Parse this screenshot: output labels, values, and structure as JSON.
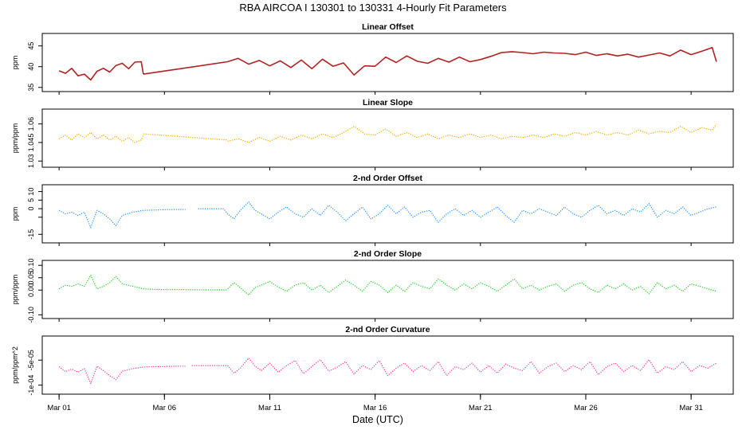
{
  "figure_title": "RBA   AIRCOA I   130301 to 130331   4-Hourly Fit Parameters",
  "chart_data": [
    {
      "type": "line",
      "title": "Linear Offset",
      "ylabel": "ppm",
      "ylim": [
        34,
        48
      ],
      "yticks": [
        35,
        40,
        45
      ],
      "ytick_labels": [
        "35",
        "40",
        "45"
      ],
      "color": "#b22222",
      "style": "solid",
      "segments": [
        {
          "x": [
            1.0,
            1.3,
            1.6,
            1.9,
            2.2,
            2.5,
            2.8,
            3.1,
            3.4,
            3.7,
            4.0,
            4.3,
            4.6,
            4.9,
            5.0
          ],
          "y": [
            39.0,
            38.4,
            39.6,
            37.8,
            38.2,
            36.8,
            38.9,
            39.6,
            38.7,
            40.3,
            40.8,
            39.5,
            41.1,
            41.2,
            38.2
          ]
        },
        {
          "x": [
            5.0,
            9.0
          ],
          "y": [
            38.2,
            41.2
          ]
        },
        {
          "x": [
            9.0,
            9.5,
            10.0,
            10.5,
            11.0,
            11.5,
            12.0,
            12.5,
            13.0,
            13.5,
            14.0,
            14.5,
            15.0,
            15.5,
            16.0,
            16.5,
            17.0,
            17.5,
            18.0,
            18.5,
            19.0,
            19.5,
            20.0,
            20.5,
            21.0,
            21.5,
            22.0,
            22.5,
            23.0,
            23.5,
            24.0,
            24.5,
            25.0,
            25.5,
            26.0,
            26.5,
            27.0,
            27.5,
            28.0,
            28.5,
            29.0,
            29.5,
            30.0,
            30.5,
            31.0,
            31.5,
            32.0,
            32.2
          ],
          "y": [
            41.2,
            42.0,
            40.6,
            41.5,
            40.2,
            41.4,
            39.8,
            41.6,
            39.5,
            41.8,
            40.1,
            40.9,
            38.0,
            40.2,
            40.1,
            42.3,
            41.0,
            42.6,
            41.3,
            40.8,
            42.0,
            41.1,
            42.3,
            41.2,
            41.7,
            42.5,
            43.4,
            43.6,
            43.4,
            43.1,
            43.5,
            43.3,
            43.2,
            42.9,
            43.5,
            42.7,
            43.1,
            42.6,
            43.0,
            42.3,
            42.8,
            43.3,
            42.6,
            44.0,
            42.9,
            43.7,
            44.6,
            41.2
          ]
        }
      ]
    },
    {
      "type": "line",
      "title": "Linear Slope",
      "ylabel": "ppm/ppm",
      "ylim": [
        1.025,
        1.072
      ],
      "yticks": [
        1.03,
        1.045,
        1.06
      ],
      "ytick_labels": [
        "1.03",
        "1.045",
        "1.06"
      ],
      "color": "#ffa500",
      "style": "dotted",
      "segments": [
        {
          "x": [
            1.0,
            1.3,
            1.6,
            1.9,
            2.2,
            2.5,
            2.8,
            3.1,
            3.4,
            3.7,
            4.0,
            4.3,
            4.6,
            4.9,
            5.0
          ],
          "y": [
            1.048,
            1.051,
            1.047,
            1.052,
            1.049,
            1.053,
            1.048,
            1.051,
            1.047,
            1.05,
            1.046,
            1.049,
            1.045,
            1.047,
            1.051
          ]
        },
        {
          "x": [
            5.0,
            9.0
          ],
          "y": [
            1.052,
            1.047
          ]
        },
        {
          "x": [
            9.0,
            9.5,
            10.0,
            10.5,
            11.0,
            11.5,
            12.0,
            12.5,
            13.0,
            13.5,
            14.0,
            14.5,
            15.0,
            15.5,
            16.0,
            16.5,
            17.0,
            17.5,
            18.0,
            18.5,
            19.0,
            19.5,
            20.0,
            20.5,
            21.0,
            21.5,
            22.0,
            22.5,
            23.0,
            23.5,
            24.0,
            24.5,
            25.0,
            25.5,
            26.0,
            26.5,
            27.0,
            27.5,
            28.0,
            28.5,
            29.0,
            29.5,
            30.0,
            30.5,
            31.0,
            31.5,
            32.0,
            32.2
          ],
          "y": [
            1.046,
            1.048,
            1.045,
            1.049,
            1.046,
            1.05,
            1.047,
            1.051,
            1.048,
            1.052,
            1.049,
            1.053,
            1.058,
            1.052,
            1.051,
            1.056,
            1.05,
            1.053,
            1.049,
            1.052,
            1.048,
            1.051,
            1.049,
            1.052,
            1.049,
            1.051,
            1.048,
            1.05,
            1.049,
            1.051,
            1.049,
            1.052,
            1.05,
            1.053,
            1.051,
            1.054,
            1.051,
            1.053,
            1.051,
            1.055,
            1.052,
            1.054,
            1.053,
            1.058,
            1.053,
            1.057,
            1.055,
            1.06
          ]
        }
      ]
    },
    {
      "type": "line",
      "title": "2-nd Order Offset",
      "ylabel": "ppm",
      "ylim": [
        -20,
        14
      ],
      "yticks": [
        -15,
        -5,
        0,
        5,
        10
      ],
      "ytick_labels": [
        "-15",
        "",
        "0",
        "5",
        "10"
      ],
      "color": "#1e90ff",
      "style": "dotted",
      "segments": [
        {
          "x": [
            1.0,
            1.3,
            1.6,
            1.9,
            2.2,
            2.5,
            2.8,
            3.1,
            3.4,
            3.7,
            4.0,
            4.5,
            5.0,
            5.5,
            6.0,
            6.5,
            7.0
          ],
          "y": [
            -1.0,
            -3.0,
            -2.0,
            -4.0,
            -2.0,
            -11.0,
            -1.0,
            -3.0,
            -6.0,
            -10.0,
            -4.0,
            -2.0,
            -1.0,
            -0.8,
            -0.6,
            -0.5,
            -0.5
          ]
        },
        {
          "x": [
            7.6,
            8.0,
            8.4,
            8.8,
            9.0,
            9.3,
            9.6,
            10.0,
            10.3,
            10.6,
            11.0,
            11.4,
            11.8,
            12.2,
            12.6,
            13.0,
            13.4,
            13.8,
            14.2,
            14.6,
            15.0,
            15.4,
            15.8,
            16.2,
            16.6,
            17.0,
            17.4,
            17.8,
            18.2,
            18.6,
            19.0,
            19.4,
            19.8,
            20.2,
            20.6,
            21.0,
            21.4,
            21.8,
            22.2,
            22.6,
            23.0,
            23.4,
            23.8,
            24.2,
            24.6,
            25.0,
            25.4,
            25.8,
            26.2,
            26.6,
            27.0,
            27.4,
            27.8,
            28.2,
            28.6,
            29.0,
            29.4,
            29.8,
            30.2,
            30.6,
            31.0,
            31.4,
            31.8,
            32.2
          ],
          "y": [
            0.0,
            0.0,
            0.0,
            0.0,
            -3.0,
            -6.0,
            -1.0,
            4.0,
            -1.0,
            -3.0,
            -6.0,
            -2.0,
            1.0,
            -3.0,
            -5.0,
            0.0,
            -4.0,
            2.0,
            -2.0,
            -7.0,
            -3.0,
            1.0,
            -6.0,
            -3.0,
            2.0,
            -3.0,
            1.0,
            -5.0,
            -2.0,
            -1.0,
            -8.0,
            -3.0,
            0.0,
            -4.0,
            -1.0,
            -5.0,
            -2.0,
            1.0,
            -4.0,
            -8.0,
            -1.0,
            -3.0,
            0.0,
            -2.0,
            -4.0,
            1.0,
            -3.0,
            -5.0,
            -1.0,
            2.0,
            -3.0,
            -1.0,
            -4.0,
            0.0,
            -2.0,
            3.0,
            -5.0,
            -1.0,
            -3.0,
            1.0,
            -4.0,
            -2.0,
            0.0,
            1.0
          ]
        }
      ]
    },
    {
      "type": "line",
      "title": "2-nd Order Slope",
      "ylabel": "ppm/ppm",
      "ylim": [
        -0.115,
        0.12
      ],
      "yticks": [
        -0.1,
        0.0,
        0.05,
        0.1
      ],
      "ytick_labels": [
        "-0.10",
        "0.00",
        "0.05",
        "0.10"
      ],
      "color": "#22cc22",
      "style": "dotted",
      "segments": [
        {
          "x": [
            1.0,
            1.3,
            1.6,
            1.9,
            2.2,
            2.5,
            2.8,
            3.1,
            3.4,
            3.7,
            4.0,
            4.5,
            5.0,
            5.5,
            6.0,
            6.5,
            7.0,
            8.0,
            9.0
          ],
          "y": [
            0.005,
            0.02,
            0.015,
            0.025,
            0.015,
            0.06,
            0.005,
            0.015,
            0.03,
            0.055,
            0.025,
            0.015,
            0.005,
            0.003,
            0.002,
            0.002,
            0.002,
            0.001,
            0.001
          ]
        },
        {
          "x": [
            9.0,
            9.3,
            9.6,
            10.0,
            10.3,
            10.6,
            11.0,
            11.4,
            11.8,
            12.2,
            12.6,
            13.0,
            13.4,
            13.8,
            14.2,
            14.6,
            15.0,
            15.4,
            15.8,
            16.2,
            16.6,
            17.0,
            17.4,
            17.8,
            18.2,
            18.6,
            19.0,
            19.4,
            19.8,
            20.2,
            20.6,
            21.0,
            21.4,
            21.8,
            22.2,
            22.6,
            23.0,
            23.4,
            23.8,
            24.2,
            24.6,
            25.0,
            25.4,
            25.8,
            26.2,
            26.6,
            27.0,
            27.4,
            27.8,
            28.2,
            28.6,
            29.0,
            29.4,
            29.8,
            30.2,
            30.6,
            31.0,
            31.4,
            31.8,
            32.2
          ],
          "y": [
            0.005,
            0.03,
            0.01,
            -0.02,
            0.01,
            0.02,
            0.035,
            0.012,
            -0.005,
            0.02,
            0.03,
            0.0,
            0.02,
            -0.01,
            0.015,
            0.04,
            0.02,
            -0.005,
            0.035,
            0.02,
            -0.01,
            0.02,
            -0.005,
            0.03,
            0.015,
            0.005,
            0.045,
            0.02,
            0.0,
            0.025,
            0.005,
            0.03,
            0.015,
            -0.005,
            0.02,
            0.045,
            0.005,
            0.02,
            0.0,
            0.015,
            0.025,
            -0.005,
            0.02,
            0.03,
            0.005,
            -0.01,
            0.02,
            0.005,
            0.025,
            0.0,
            0.015,
            -0.015,
            0.03,
            0.005,
            0.02,
            -0.005,
            0.025,
            0.015,
            0.005,
            -0.005
          ]
        }
      ]
    },
    {
      "type": "line",
      "title": "2-nd Order Curvature",
      "ylabel": "ppm/ppm^2",
      "ylim": [
        -0.000118,
        -2e-06
      ],
      "yticks": [
        -0.0001,
        -5e-05
      ],
      "ytick_labels": [
        "-1e-04",
        "-5e-05"
      ],
      "color": "#ff3399",
      "style": "dotted",
      "segments": [
        {
          "x": [
            1.0,
            1.3,
            1.6,
            1.9,
            2.2,
            2.5,
            2.8,
            3.1,
            3.4,
            3.7,
            4.0,
            4.5,
            5.0,
            5.5,
            6.0,
            6.5,
            7.0
          ],
          "y": [
            -6.3e-05,
            -7.3e-05,
            -6.8e-05,
            -7.4e-05,
            -6.7e-05,
            -9.7e-05,
            -6.2e-05,
            -7.1e-05,
            -8.1e-05,
            -8.9e-05,
            -7.2e-05,
            -6.7e-05,
            -6.4e-05,
            -6.3e-05,
            -6.3e-05,
            -6.2e-05,
            -6.2e-05
          ]
        },
        {
          "x": [
            7.3,
            8.0,
            8.5,
            9.0,
            9.3,
            9.6,
            10.0,
            10.3,
            10.6,
            11.0,
            11.4,
            11.8,
            12.2,
            12.6,
            13.0,
            13.4,
            13.8,
            14.2,
            14.6,
            15.0,
            15.4,
            15.8,
            16.2,
            16.6,
            17.0,
            17.4,
            17.8,
            18.2,
            18.6,
            19.0,
            19.4,
            19.8,
            20.2,
            20.6,
            21.0,
            21.4,
            21.8,
            22.2,
            22.6,
            23.0,
            23.4,
            23.8,
            24.2,
            24.6,
            25.0,
            25.4,
            25.8,
            26.2,
            26.6,
            27.0,
            27.4,
            27.8,
            28.2,
            28.6,
            29.0,
            29.4,
            29.8,
            30.2,
            30.6,
            31.0,
            31.4,
            31.8,
            32.2
          ],
          "y": [
            -6.1e-05,
            -6.1e-05,
            -6.1e-05,
            -6.1e-05,
            -7.6e-05,
            -6.6e-05,
            -4.6e-05,
            -6.2e-05,
            -7.1e-05,
            -5.6e-05,
            -7.4e-05,
            -6.1e-05,
            -5.1e-05,
            -7.7e-05,
            -6.3e-05,
            -4.9e-05,
            -7.2e-05,
            -6.4e-05,
            -5.3e-05,
            -7.8e-05,
            -6.1e-05,
            -6.9e-05,
            -5.1e-05,
            -8.1e-05,
            -6.6e-05,
            -5.6e-05,
            -7.3e-05,
            -6.1e-05,
            -7.1e-05,
            -5.3e-05,
            -8.1e-05,
            -6.3e-05,
            -6.9e-05,
            -5.6e-05,
            -7.4e-05,
            -6.1e-05,
            -7.6e-05,
            -5.8e-05,
            -6.6e-05,
            -7.1e-05,
            -5.3e-05,
            -7.6e-05,
            -6.3e-05,
            -5.6e-05,
            -7.3e-05,
            -6.1e-05,
            -6.9e-05,
            -5.3e-05,
            -7.9e-05,
            -6.3e-05,
            -5.6e-05,
            -7.3e-05,
            -6.1e-05,
            -7.1e-05,
            -4.9e-05,
            -7.6e-05,
            -6.3e-05,
            -6.9e-05,
            -5.3e-05,
            -7.3e-05,
            -6.1e-05,
            -6.6e-05,
            -5.6e-05
          ]
        }
      ]
    }
  ],
  "x_axis": {
    "label": "Date (UTC)",
    "xlim": [
      0.2,
      33.0
    ],
    "ticks": [
      1,
      6,
      11,
      16,
      21,
      26,
      31
    ],
    "tick_labels": [
      "Mar 01",
      "Mar 06",
      "Mar 11",
      "Mar 16",
      "Mar 21",
      "Mar 26",
      "Mar 31"
    ]
  }
}
